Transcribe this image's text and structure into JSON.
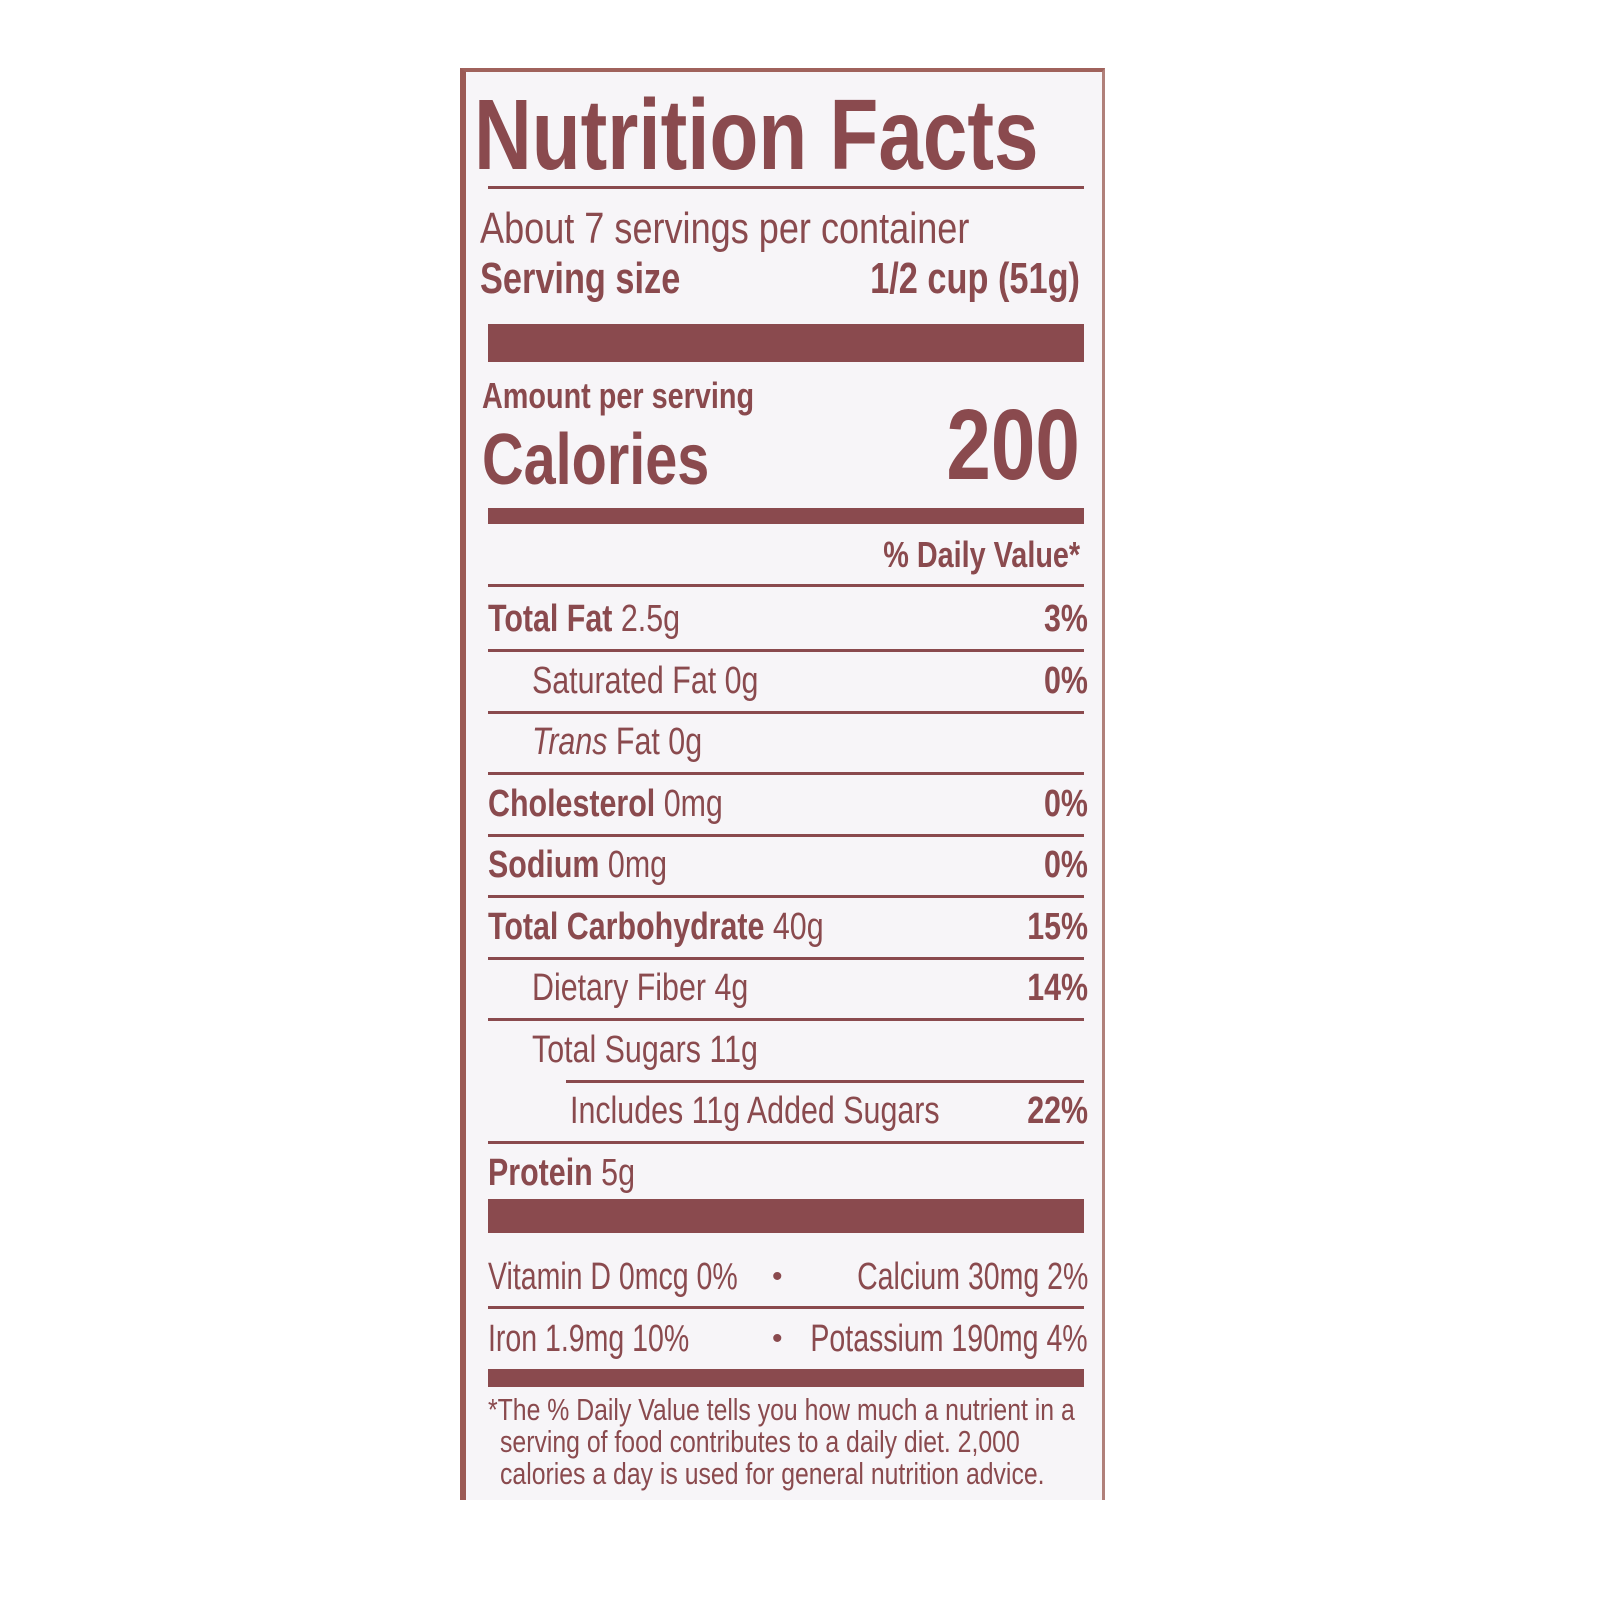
{
  "title": "Nutrition Facts",
  "servings_per_container": "About 7 servings per container",
  "serving_size_label": "Serving size",
  "serving_size_value": "1/2 cup (51g)",
  "amount_per_serving": "Amount per serving",
  "calories_label": "Calories",
  "calories_value": "200",
  "daily_value_header": "% Daily Value*",
  "nutrients": [
    {
      "name": "Total Fat",
      "amount": "2.5g",
      "dv": "3%",
      "bold": true,
      "indent": 0
    },
    {
      "name": "Saturated Fat",
      "amount": "0g",
      "dv": "0%",
      "bold": false,
      "indent": 1
    },
    {
      "name": "Trans",
      "name_suffix": "Fat",
      "amount": "0g",
      "dv": "",
      "bold": false,
      "indent": 1
    },
    {
      "name": "Cholesterol",
      "amount": "0mg",
      "dv": "0%",
      "bold": true,
      "indent": 0
    },
    {
      "name": "Sodium",
      "amount": "0mg",
      "dv": "0%",
      "bold": true,
      "indent": 0
    },
    {
      "name": "Total Carbohydrate",
      "amount": "40g",
      "dv": "15%",
      "bold": true,
      "indent": 0
    },
    {
      "name": "Dietary Fiber",
      "amount": "4g",
      "dv": "14%",
      "bold": false,
      "indent": 1
    },
    {
      "name": "Total Sugars",
      "amount": "11g",
      "dv": "",
      "bold": false,
      "indent": 1
    },
    {
      "name": "Includes 11g Added Sugars",
      "amount": "",
      "dv": "22%",
      "bold": false,
      "indent": 2
    },
    {
      "name": "Protein",
      "amount": "5g",
      "dv": "",
      "bold": true,
      "indent": 0
    }
  ],
  "vitamins": {
    "row1_left": "Vitamin D 0mcg 0%",
    "row1_right": "Calcium 30mg 2%",
    "row2_left": "Iron 1.9mg 10%",
    "row2_right": "Potassium 190mg 4%",
    "bullet": "•"
  },
  "footnote": [
    "*The % Daily Value tells you how much a nutrient in a",
    "serving of food contributes to a daily diet. 2,000",
    "calories a day is used for general nutrition advice."
  ],
  "colors": {
    "ink": "#8a4a4e",
    "background": "#f7f5f8"
  }
}
